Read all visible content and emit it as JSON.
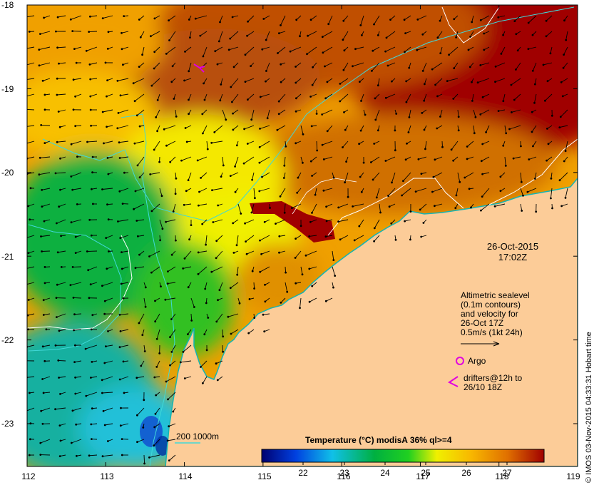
{
  "map": {
    "axes": {
      "lon_ticks": [
        "112",
        "113",
        "114",
        "115",
        "116",
        "117",
        "118",
        "119"
      ],
      "lat_ticks": [
        "-18",
        "-19",
        "-20",
        "-21",
        "-22",
        "-23"
      ],
      "lon_range": [
        112,
        119
      ],
      "lat_range": [
        -23.5,
        -18
      ]
    },
    "date_line1": "26-Oct-2015",
    "date_line2": "17:02Z",
    "altimetry_lines": [
      "Altimetric sealevel",
      "(0.1m contours)",
      "and velocity for",
      "26-Oct 17Z",
      "0.5m/s (1kt 24h)"
    ],
    "argo_label": "Argo",
    "drifter_line1": "drifters@12h to",
    "drifter_line2": "26/10 18Z",
    "contour_legend": "200  1000m",
    "colorbar": {
      "title": "Temperature (°C) modisA 36% ql>=4",
      "ticks": [
        "22",
        "23",
        "24",
        "25",
        "26",
        "27"
      ],
      "range": [
        21,
        27.8
      ],
      "colors": [
        "#000070",
        "#0040e0",
        "#10c0e8",
        "#00b040",
        "#20d020",
        "#f0f000",
        "#f8b800",
        "#e07000",
        "#a00000"
      ]
    },
    "credit": "© IMOS 03-Nov-2015 04:33:31 Hobart time",
    "colors": {
      "land": "#fccc98",
      "coast": "#14b4b4",
      "contour": "#40d8d8",
      "sealevel": "#ffffff",
      "argo": "#e000e0",
      "vector": "#000000"
    }
  }
}
